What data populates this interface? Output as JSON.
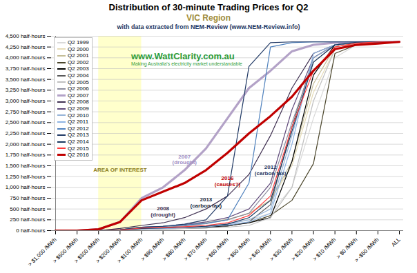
{
  "chart_data": {
    "type": "line",
    "title": "Distribution of 30-minute Trading Prices for Q2",
    "subtitle": [
      "VIC Region",
      "with data extracted from NEM-Review (www.NEM-Review.info)"
    ],
    "logo": [
      "www.WattClarity.com.au",
      "Making Australia's electricity market understandable"
    ],
    "categories": [
      "> $1,000 /MWh",
      "> $500 /MWh",
      "> $300 /MWh",
      "> $200 /MWh",
      "> $100 /MWh",
      "> $90 /MWh",
      "> $80 /MWh",
      "> $70 /MWh",
      "> $60 /MWh",
      "> $50 /MWh",
      "> $40 /MWh",
      "> $30 /MWh",
      "> $20 /MWh",
      "> $10 /MWh",
      "> $0 /MWh",
      "> -$50 /MWh",
      "ALL"
    ],
    "series": [
      {
        "name": "Q2 1999",
        "color": "#d9d9d9",
        "line_style": "solid",
        "values": [
          0,
          5,
          10,
          20,
          60,
          70,
          90,
          120,
          170,
          250,
          400,
          1000,
          2600,
          4000,
          4300,
          4360,
          4368
        ]
      },
      {
        "name": "Q2 2000",
        "color": "#e6dcb8",
        "line_style": "solid",
        "values": [
          0,
          5,
          10,
          20,
          70,
          90,
          120,
          170,
          250,
          400,
          700,
          1500,
          3200,
          4200,
          4340,
          4368,
          4368
        ]
      },
      {
        "name": "Q2 2001",
        "color": "#c4bd97",
        "line_style": "solid",
        "values": [
          0,
          5,
          10,
          25,
          80,
          100,
          130,
          180,
          260,
          400,
          700,
          1600,
          3400,
          4250,
          4350,
          4368,
          4368
        ]
      },
      {
        "name": "Q2 2002",
        "color": "#4a452a",
        "line_style": "solid",
        "values": [
          0,
          0,
          5,
          15,
          50,
          60,
          70,
          90,
          120,
          180,
          350,
          700,
          1550,
          4100,
          4300,
          4368,
          4368
        ]
      },
      {
        "name": "Q2 2003",
        "color": "#000000",
        "line_style": "solid",
        "values": [
          0,
          0,
          5,
          10,
          40,
          50,
          60,
          80,
          110,
          180,
          300,
          1600,
          3600,
          4300,
          4360,
          4368,
          4368
        ]
      },
      {
        "name": "Q2 2004",
        "color": "#595959",
        "line_style": "solid",
        "values": [
          0,
          0,
          5,
          10,
          30,
          40,
          50,
          60,
          100,
          200,
          600,
          2400,
          4000,
          4300,
          4360,
          4368,
          4368
        ]
      },
      {
        "name": "Q2 2005",
        "color": "#bfbfbf",
        "line_style": "solid",
        "values": [
          0,
          0,
          5,
          10,
          30,
          40,
          50,
          60,
          80,
          120,
          300,
          1000,
          3000,
          4200,
          4350,
          4368,
          4368
        ]
      },
      {
        "name": "Q2 2006",
        "color": "#8c8c9e",
        "line_style": "solid",
        "values": [
          0,
          0,
          5,
          20,
          60,
          80,
          110,
          160,
          250,
          400,
          1000,
          2500,
          3900,
          4300,
          4360,
          4368,
          4368
        ]
      },
      {
        "name": "Q2 2007",
        "color": "#b3a2c7",
        "line_style": "bold",
        "values": [
          0,
          0,
          30,
          200,
          750,
          1000,
          1400,
          1900,
          2600,
          3300,
          3700,
          4150,
          4300,
          4350,
          4360,
          4368,
          4368
        ]
      },
      {
        "name": "Q2 2008",
        "color": "#403152",
        "line_style": "solid",
        "values": [
          0,
          0,
          0,
          50,
          120,
          180,
          300,
          500,
          800,
          1300,
          2200,
          3300,
          4100,
          4300,
          4350,
          4368,
          4368
        ]
      },
      {
        "name": "Q2 2009",
        "color": "#604a7b",
        "line_style": "solid",
        "values": [
          0,
          0,
          5,
          20,
          80,
          100,
          140,
          200,
          300,
          500,
          1100,
          2800,
          4000,
          4300,
          4360,
          4368,
          4368
        ]
      },
      {
        "name": "Q2 2010",
        "color": "#95b3d7",
        "line_style": "solid",
        "values": [
          0,
          0,
          5,
          10,
          40,
          50,
          70,
          100,
          150,
          250,
          500,
          2200,
          4000,
          4300,
          4360,
          4368,
          4368
        ]
      },
      {
        "name": "Q2 2011",
        "color": "#8eb4e3",
        "line_style": "solid",
        "values": [
          0,
          0,
          5,
          10,
          40,
          50,
          70,
          90,
          130,
          200,
          400,
          2000,
          4100,
          4300,
          4360,
          4368,
          4368
        ]
      },
      {
        "name": "Q2 2012",
        "color": "#4f81bd",
        "line_style": "solid",
        "values": [
          0,
          0,
          5,
          20,
          80,
          100,
          130,
          170,
          250,
          1100,
          4250,
          4350,
          4368,
          4368,
          4368,
          4368,
          4368
        ]
      },
      {
        "name": "Q2 2013",
        "color": "#1f3864",
        "line_style": "solid",
        "values": [
          0,
          0,
          5,
          20,
          80,
          100,
          150,
          250,
          800,
          3800,
          4350,
          4368,
          4368,
          4368,
          4368,
          4368,
          4368
        ]
      },
      {
        "name": "Q2 2014",
        "color": "#17375e",
        "line_style": "solid",
        "values": [
          0,
          0,
          0,
          10,
          50,
          60,
          80,
          100,
          150,
          300,
          700,
          2300,
          3900,
          4300,
          4360,
          4368,
          4368
        ]
      },
      {
        "name": "Q2 2015",
        "color": "#ff3b3b",
        "line_style": "solid",
        "values": [
          0,
          0,
          0,
          10,
          60,
          70,
          90,
          120,
          180,
          350,
          800,
          2400,
          3700,
          4250,
          4340,
          4368,
          4368
        ]
      },
      {
        "name": "Q2 2016",
        "color": "#c00000",
        "line_style": "bold",
        "values": [
          0,
          0,
          30,
          200,
          700,
          900,
          1100,
          1400,
          1800,
          2250,
          2650,
          3100,
          3700,
          4200,
          4300,
          4330,
          4368
        ]
      }
    ],
    "ylim": [
      0,
      4500
    ],
    "yticks": [
      {
        "value": 0,
        "label": "0 half-hours"
      },
      {
        "value": 250,
        "label": "250 half-hours"
      },
      {
        "value": 500,
        "label": "500 half-hours"
      },
      {
        "value": 750,
        "label": "750 half-hours"
      },
      {
        "value": 1000,
        "label": "1,000 half-hours"
      },
      {
        "value": 1250,
        "label": "1,250 half-hours"
      },
      {
        "value": 1500,
        "label": "1,500 half-hours"
      },
      {
        "value": 1750,
        "label": "1,750 half-hours"
      },
      {
        "value": 2000,
        "label": "2,000 half-hours"
      },
      {
        "value": 2250,
        "label": "2,250 half-hours"
      },
      {
        "value": 2500,
        "label": "2,500 half-hours"
      },
      {
        "value": 2750,
        "label": "2,750 half-hours"
      },
      {
        "value": 3000,
        "label": "3,000 half-hours"
      },
      {
        "value": 3250,
        "label": "3,250 half-hours"
      },
      {
        "value": 3500,
        "label": "3,500 half-hours"
      },
      {
        "value": 3750,
        "label": "3,750 half-hours"
      },
      {
        "value": 4000,
        "label": "4,000 half-hours"
      },
      {
        "value": 4250,
        "label": "4,250 half-hours"
      },
      {
        "value": 4500,
        "label": "4,500 half-hours"
      }
    ],
    "grid": true,
    "legend": "top-left",
    "highlight": {
      "x_from": "> $300 /MWh",
      "x_to": "> $100 /MWh",
      "color": "#ffffcc",
      "label": "AREA OF INTEREST",
      "label_x": "> $200 /MWh",
      "label_y": 1400,
      "label_color": "#8b7d1a"
    },
    "annotations": [
      {
        "text": "2007\n(drought)",
        "x": "> $80 /MWh",
        "y": 1650,
        "color": "#9f8fc4"
      },
      {
        "text": "2016\n(causes?)",
        "x": "> $60 /MWh",
        "y": 1150,
        "color": "#c00000"
      },
      {
        "text": "2012\n(carbon tax)",
        "x": "> $40 /MWh",
        "y": 1400,
        "color": "#1f3864"
      },
      {
        "text": "2013\n(carbon tax)",
        "x": "> $70 /MWh",
        "y": 650,
        "color": "#0f1f3d"
      },
      {
        "text": "2008\n(drought)",
        "x": "> $90 /MWh",
        "y": 450,
        "color": "#403152"
      }
    ]
  }
}
